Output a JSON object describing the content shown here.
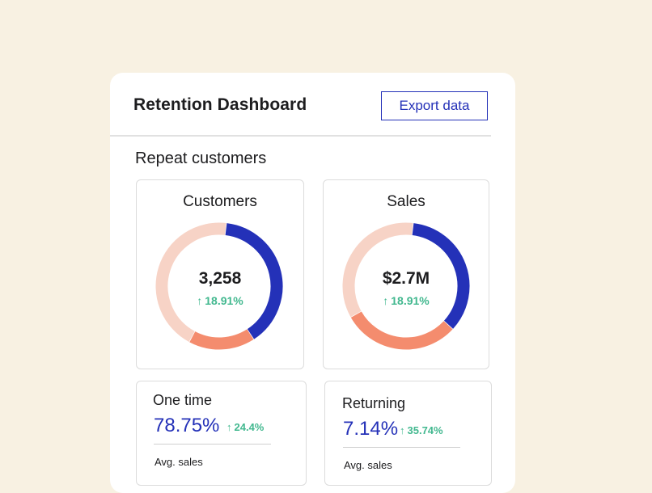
{
  "header": {
    "title": "Retention Dashboard",
    "export_label": "Export data"
  },
  "section": {
    "title": "Repeat customers"
  },
  "cards": [
    {
      "title": "Customers",
      "value": "3,258",
      "change": "18.91%",
      "segments": [
        {
          "label": "blue",
          "color": "#2431b8",
          "fraction": 0.39
        },
        {
          "label": "orange",
          "color": "#f48c6e",
          "fraction": 0.17
        },
        {
          "label": "light",
          "color": "#f7d3c6",
          "fraction": 0.44
        }
      ]
    },
    {
      "title": "Sales",
      "value": "$2.7M",
      "change": "18.91%",
      "segments": [
        {
          "label": "blue",
          "color": "#2431b8",
          "fraction": 0.35
        },
        {
          "label": "orange",
          "color": "#f48c6e",
          "fraction": 0.3
        },
        {
          "label": "light",
          "color": "#f7d3c6",
          "fraction": 0.35
        }
      ]
    }
  ],
  "metrics": [
    {
      "title": "One time",
      "value": "78.75%",
      "change": "24.4%",
      "sub": "Avg. sales"
    },
    {
      "title": "Returning",
      "value": "7.14%",
      "change": "35.74%",
      "sub": "Avg. sales"
    }
  ],
  "colors": {
    "accent": "#2431b8",
    "positive": "#42b88f",
    "background": "#f8f1e2"
  },
  "icons": {
    "change": "arrow-up-icon"
  }
}
